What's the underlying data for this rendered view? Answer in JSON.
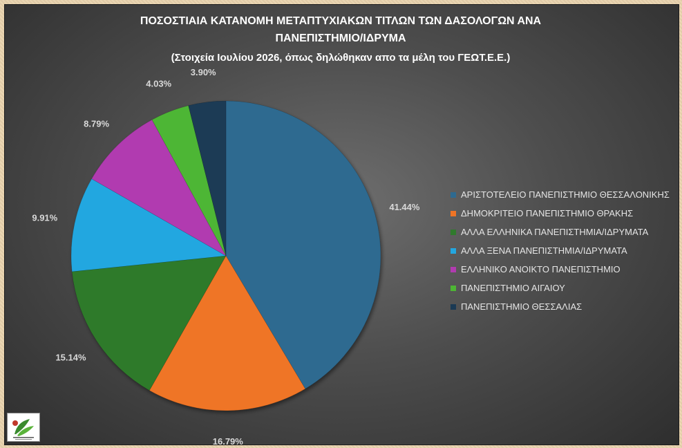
{
  "chart_data": {
    "type": "pie",
    "title_lines": [
      "ΠΟΣΟΣΤΙΑΙΑ ΚΑΤΑΝΟΜΗ ΜΕΤΑΠΤΥΧΙΑΚΩΝ ΤΙΤΛΩΝ ΤΩΝ ΔΑΣΟΛΟΓΩΝ ΑΝΑ",
      "ΠΑΝΕΠΙΣΤΗΜΙΟ/ΙΔΡΥΜΑ"
    ],
    "subtitle": "(Στοιχεία Ιουλίου 2026, όπως δηλώθηκαν απο τα μέλη του ΓΕΩΤ.Ε.Ε.)",
    "legend_position": "right",
    "slices": [
      {
        "name": "ΑΡΙΣΤΟΤΕΛΕΙΟ ΠΑΝΕΠΙΣΤΗΜΙΟ ΘΕΣΣΑΛΟΝΙΚΗΣ",
        "value": 41.44,
        "label": "41.44%",
        "color": "#2e6a90"
      },
      {
        "name": "ΔΗΜΟΚΡΙΤΕΙΟ ΠΑΝΕΠΙΣΤΗΜΙΟ ΘΡΑΚΗΣ",
        "value": 16.79,
        "label": "16.79%",
        "color": "#ef7425"
      },
      {
        "name": "ΑΛΛΑ ΕΛΛΗΝΙΚΑ ΠΑΝΕΠΙΣΤΗΜΙΑ/ΙΔΡΥΜΑΤΑ",
        "value": 15.14,
        "label": "15.14%",
        "color": "#2f7a2c"
      },
      {
        "name": "ΑΛΛΑ ΞΕΝΑ ΠΑΝΕΠΙΣΤΗΜΙΑ/ΙΔΡΥΜΑΤΑ",
        "value": 9.91,
        "label": "9.91%",
        "color": "#23a7e0"
      },
      {
        "name": "ΕΛΛΗΝΙΚΟ ΑΝΟΙΚΤΟ ΠΑΝΕΠΙΣΤΗΜΙΟ",
        "value": 8.79,
        "label": "8.79%",
        "color": "#b13bb0"
      },
      {
        "name": "ΠΑΝΕΠΙΣΤΗΜΙΟ ΑΙΓΑΙΟΥ",
        "value": 4.03,
        "label": "4.03%",
        "color": "#4db634"
      },
      {
        "name": "ΠΑΝΕΠΙΣΤΗΜΙΟ ΘΕΣΣΑΛΙΑΣ",
        "value": 3.9,
        "label": "3.90%",
        "color": "#1b3a54"
      }
    ]
  },
  "logo": {
    "icon": "geotee-leaf-logo-icon"
  }
}
